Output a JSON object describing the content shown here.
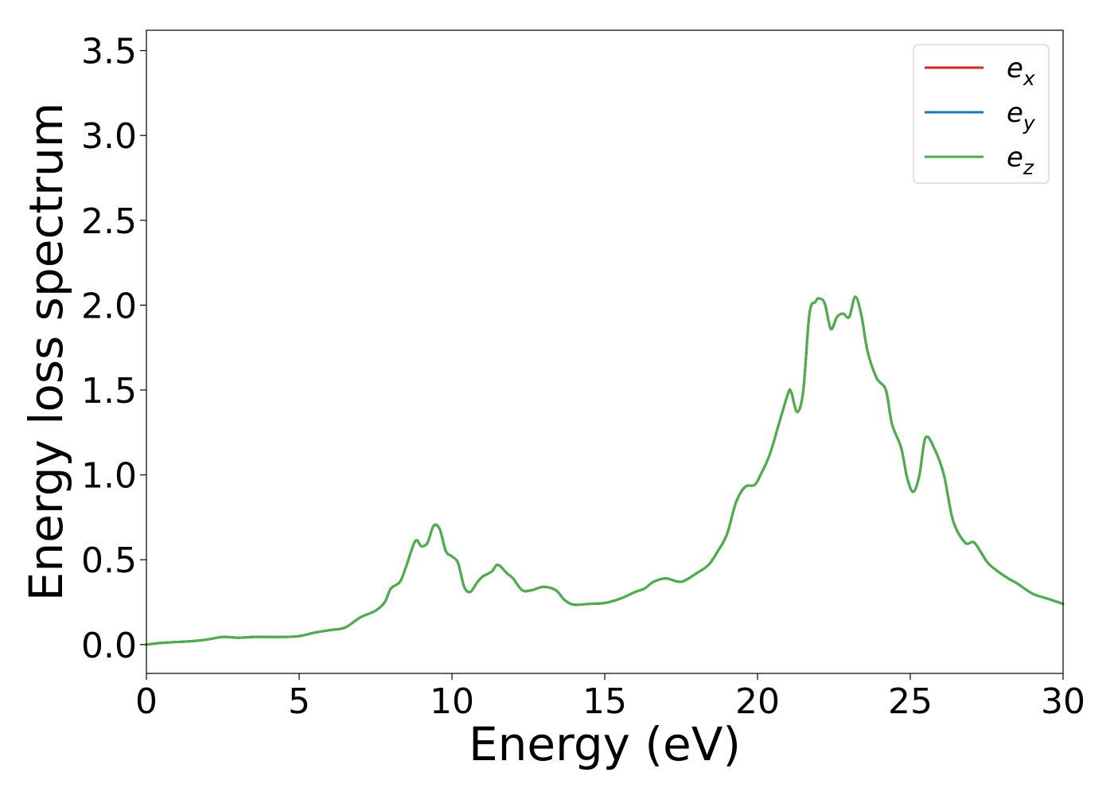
{
  "chart_data": {
    "type": "line",
    "title": "",
    "xlabel": "Energy (eV)",
    "ylabel": "Energy loss spectrum",
    "xlim": [
      0,
      30
    ],
    "ylim": [
      -0.17,
      3.62
    ],
    "xticks": [
      0,
      5,
      10,
      15,
      20,
      25,
      30
    ],
    "xtick_labels": [
      "0",
      "5",
      "10",
      "15",
      "20",
      "25",
      "30"
    ],
    "yticks": [
      0.0,
      0.5,
      1.0,
      1.5,
      2.0,
      2.5,
      3.0,
      3.5
    ],
    "ytick_labels": [
      "0.0",
      "0.5",
      "1.0",
      "1.5",
      "2.0",
      "2.5",
      "3.0",
      "3.5"
    ],
    "grid": false,
    "legend_position": "top-right",
    "x": [
      0,
      0.5,
      1,
      1.5,
      2,
      2.5,
      3,
      3.5,
      4,
      4.5,
      5,
      5.5,
      6,
      6.5,
      7,
      7.5,
      7.8,
      8.0,
      8.3,
      8.5,
      8.8,
      9.0,
      9.2,
      9.4,
      9.6,
      9.8,
      10.0,
      10.2,
      10.4,
      10.6,
      10.8,
      11.0,
      11.3,
      11.5,
      11.8,
      12.0,
      12.3,
      12.6,
      13.0,
      13.4,
      13.7,
      14.0,
      14.5,
      15.0,
      15.5,
      16.0,
      16.3,
      16.6,
      17.0,
      17.5,
      18.0,
      18.4,
      18.7,
      19.0,
      19.3,
      19.6,
      19.9,
      20.1,
      20.4,
      20.7,
      21.0,
      21.1,
      21.3,
      21.5,
      21.7,
      21.9,
      22.0,
      22.2,
      22.4,
      22.6,
      22.8,
      23.0,
      23.2,
      23.4,
      23.6,
      23.9,
      24.2,
      24.4,
      24.7,
      24.9,
      25.1,
      25.3,
      25.5,
      25.8,
      26.1,
      26.4,
      26.8,
      27.1,
      27.5,
      27.8,
      28.2,
      28.5,
      29.0,
      29.5,
      30.0
    ],
    "series": [
      {
        "name": "e_x",
        "color": "#d62728",
        "values": [
          0.0,
          0.01,
          0.015,
          0.02,
          0.03,
          0.045,
          0.04,
          0.045,
          0.045,
          0.045,
          0.05,
          0.07,
          0.085,
          0.1,
          0.16,
          0.2,
          0.25,
          0.33,
          0.37,
          0.46,
          0.61,
          0.58,
          0.6,
          0.7,
          0.68,
          0.55,
          0.52,
          0.48,
          0.34,
          0.31,
          0.36,
          0.4,
          0.43,
          0.47,
          0.42,
          0.39,
          0.32,
          0.32,
          0.34,
          0.32,
          0.26,
          0.235,
          0.24,
          0.245,
          0.27,
          0.31,
          0.33,
          0.37,
          0.39,
          0.37,
          0.42,
          0.47,
          0.55,
          0.65,
          0.84,
          0.93,
          0.94,
          1.0,
          1.12,
          1.3,
          1.48,
          1.49,
          1.37,
          1.5,
          1.95,
          2.02,
          2.04,
          2.01,
          1.86,
          1.93,
          1.95,
          1.93,
          2.05,
          1.94,
          1.73,
          1.57,
          1.5,
          1.3,
          1.16,
          0.98,
          0.9,
          1.0,
          1.22,
          1.15,
          1.0,
          0.73,
          0.6,
          0.6,
          0.49,
          0.44,
          0.39,
          0.36,
          0.3,
          0.27,
          0.24
        ]
      },
      {
        "name": "e_y",
        "color": "#1f77b4",
        "values": [
          0.0,
          0.01,
          0.015,
          0.02,
          0.03,
          0.045,
          0.04,
          0.045,
          0.045,
          0.045,
          0.05,
          0.07,
          0.085,
          0.1,
          0.16,
          0.2,
          0.25,
          0.33,
          0.37,
          0.46,
          0.61,
          0.58,
          0.6,
          0.7,
          0.68,
          0.55,
          0.52,
          0.48,
          0.34,
          0.31,
          0.36,
          0.4,
          0.43,
          0.47,
          0.42,
          0.39,
          0.32,
          0.32,
          0.34,
          0.32,
          0.26,
          0.235,
          0.24,
          0.245,
          0.27,
          0.31,
          0.33,
          0.37,
          0.39,
          0.37,
          0.42,
          0.47,
          0.55,
          0.65,
          0.84,
          0.93,
          0.94,
          1.0,
          1.12,
          1.3,
          1.48,
          1.49,
          1.37,
          1.5,
          1.95,
          2.02,
          2.04,
          2.01,
          1.86,
          1.93,
          1.95,
          1.93,
          2.05,
          1.94,
          1.73,
          1.57,
          1.5,
          1.3,
          1.16,
          0.98,
          0.9,
          1.0,
          1.22,
          1.15,
          1.0,
          0.73,
          0.6,
          0.6,
          0.49,
          0.44,
          0.39,
          0.36,
          0.3,
          0.27,
          0.24
        ]
      },
      {
        "name": "e_z",
        "color": "#4daf4a",
        "values": [
          0.0,
          0.01,
          0.015,
          0.02,
          0.03,
          0.045,
          0.04,
          0.045,
          0.045,
          0.045,
          0.05,
          0.07,
          0.085,
          0.1,
          0.16,
          0.2,
          0.25,
          0.33,
          0.37,
          0.46,
          0.61,
          0.58,
          0.6,
          0.7,
          0.68,
          0.55,
          0.52,
          0.48,
          0.34,
          0.31,
          0.36,
          0.4,
          0.43,
          0.47,
          0.42,
          0.39,
          0.32,
          0.32,
          0.34,
          0.32,
          0.26,
          0.235,
          0.24,
          0.245,
          0.27,
          0.31,
          0.33,
          0.37,
          0.39,
          0.37,
          0.42,
          0.47,
          0.55,
          0.65,
          0.84,
          0.93,
          0.94,
          1.0,
          1.12,
          1.3,
          1.48,
          1.49,
          1.37,
          1.5,
          1.95,
          2.02,
          2.04,
          2.01,
          1.86,
          1.93,
          1.95,
          1.93,
          2.05,
          1.94,
          1.73,
          1.57,
          1.5,
          1.3,
          1.16,
          0.98,
          0.9,
          1.0,
          1.22,
          1.15,
          1.0,
          0.73,
          0.6,
          0.6,
          0.49,
          0.44,
          0.39,
          0.36,
          0.3,
          0.27,
          0.24
        ]
      }
    ],
    "legend": [
      {
        "label_base": "e",
        "label_sub": "x",
        "color": "#d62728"
      },
      {
        "label_base": "e",
        "label_sub": "y",
        "color": "#1f77b4"
      },
      {
        "label_base": "e",
        "label_sub": "z",
        "color": "#4daf4a"
      }
    ]
  }
}
